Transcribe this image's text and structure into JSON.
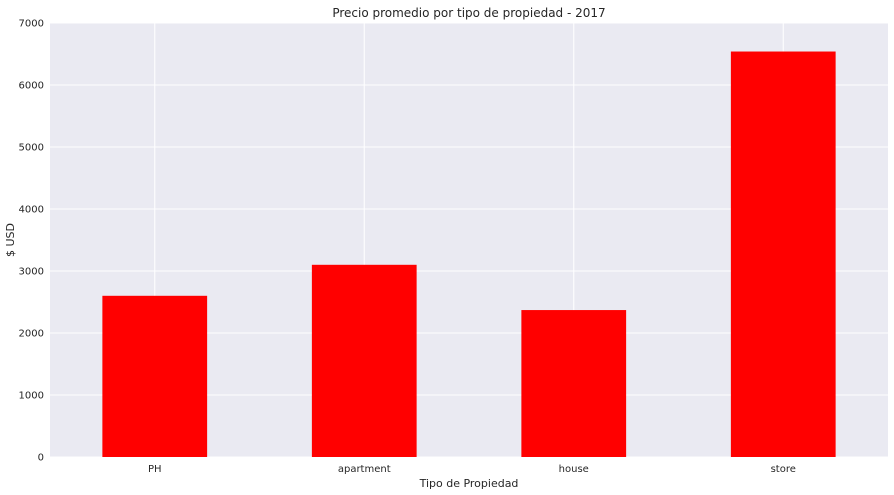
{
  "chart_data": {
    "type": "bar",
    "title": "Precio promedio por tipo de propiedad - 2017",
    "xlabel": "Tipo de Propiedad",
    "ylabel": "$ USD",
    "categories": [
      "PH",
      "apartment",
      "house",
      "store"
    ],
    "values": [
      2600,
      3100,
      2370,
      6540
    ],
    "ylim": [
      0,
      7000
    ],
    "yticks": [
      0,
      1000,
      2000,
      3000,
      4000,
      5000,
      6000,
      7000
    ],
    "grid": true,
    "colors": {
      "bar": "#ff0000",
      "plot_background": "#eaeaf2",
      "grid": "#ffffff",
      "text": "#262626"
    }
  }
}
